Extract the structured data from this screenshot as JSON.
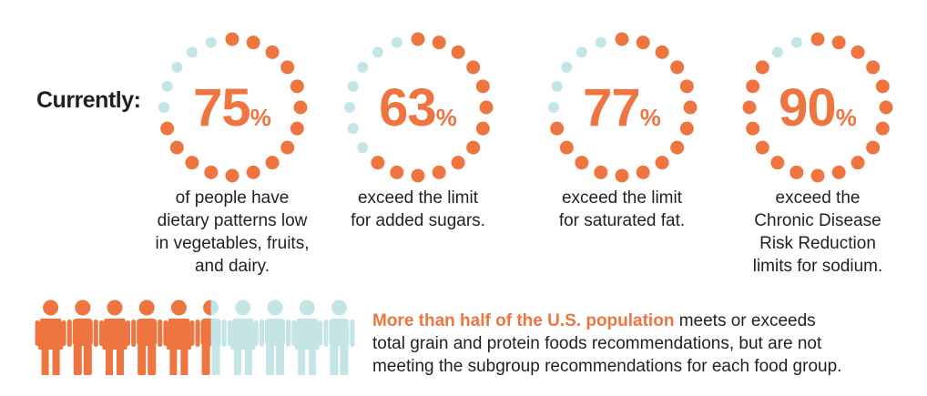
{
  "intro_label": "Currently:",
  "colors": {
    "accent": "#ee7440",
    "muted": "#c5e4e6",
    "text": "#231f20"
  },
  "stats": [
    {
      "percent": 75,
      "percent_value": "75",
      "percent_sign": "%",
      "lines": [
        "of people have",
        "dietary patterns low",
        "in vegetables, fruits,",
        "and dairy."
      ]
    },
    {
      "percent": 63,
      "percent_value": "63",
      "percent_sign": "%",
      "lines": [
        "exceed the limit",
        "for added sugars."
      ]
    },
    {
      "percent": 77,
      "percent_value": "77",
      "percent_sign": "%",
      "lines": [
        "exceed the limit",
        "for saturated fat."
      ]
    },
    {
      "percent": 90,
      "percent_value": "90",
      "percent_sign": "%",
      "lines": [
        "exceed the",
        "Chronic Disease",
        "Risk Reduction",
        "limits for sodium."
      ]
    }
  ],
  "population": {
    "icon_count": 10,
    "filled_fraction": 0.55,
    "highlight": "More than half of the U.S. population",
    "lines": [
      "meets or exceeds",
      "total grain and protein foods recommendations, but are not",
      "meeting the subgroup recommendations for each food group."
    ]
  }
}
